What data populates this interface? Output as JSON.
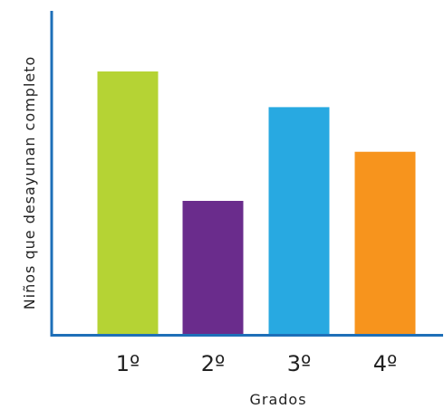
{
  "chart_data": {
    "type": "bar",
    "categories": [
      "1º",
      "2º",
      "3º",
      "4º"
    ],
    "values": [
      5.9,
      3.0,
      5.1,
      4.1
    ],
    "colors": [
      "#b5d334",
      "#6a2c8c",
      "#28a9e1",
      "#f7941d"
    ],
    "axis_color": "#1e6fb8",
    "xlabel": "Grados",
    "ylabel": "Niños que desayunan completo",
    "title": "",
    "ylim": [
      0,
      7.5
    ],
    "grid": false,
    "legend": "none"
  }
}
